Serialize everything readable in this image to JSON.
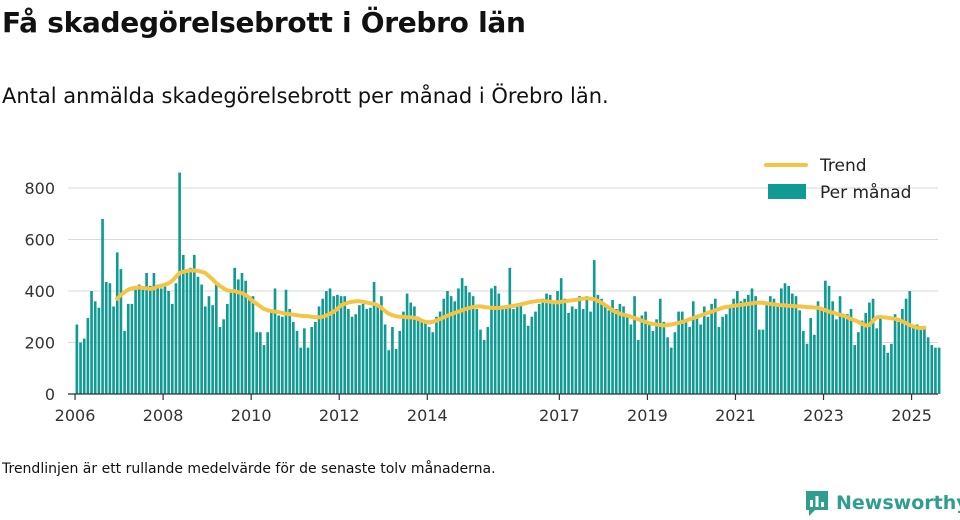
{
  "title": "Få skadegörelsebrott i Örebro län",
  "subtitle": "Antal anmälda skadegörelsebrott per månad i Örebro län.",
  "footnote": "Trendlinjen är ett rullande medelvärde för de senaste tolv månaderna.",
  "brand": "Newsworthy",
  "colors": {
    "bar": "#0f9a93",
    "trend": "#f5c444",
    "grid": "#d9d9d9",
    "axis": "#333333",
    "brand": "#2f9e8f"
  },
  "chart_data": {
    "type": "bar",
    "title": "",
    "xlabel": "",
    "ylabel": "",
    "ylim": [
      0,
      850
    ],
    "yticks": [
      0,
      200,
      400,
      600,
      800
    ],
    "xticks": [
      "2006",
      "2008",
      "2010",
      "2012",
      "2014",
      "2017",
      "2019",
      "2021",
      "2023",
      "2025"
    ],
    "legend": {
      "position": "top-right",
      "items": [
        "Trend",
        "Per månad"
      ]
    },
    "grid": true,
    "start": "2006-01",
    "series": [
      {
        "name": "Per månad",
        "type": "bar",
        "values": [
          270,
          200,
          215,
          295,
          400,
          360,
          335,
          680,
          435,
          430,
          340,
          550,
          485,
          245,
          350,
          350,
          405,
          425,
          405,
          470,
          420,
          470,
          420,
          410,
          430,
          400,
          350,
          430,
          860,
          540,
          480,
          490,
          540,
          455,
          425,
          340,
          380,
          345,
          435,
          260,
          290,
          350,
          400,
          490,
          445,
          470,
          440,
          380,
          380,
          240,
          240,
          190,
          240,
          320,
          410,
          305,
          300,
          405,
          330,
          280,
          245,
          180,
          255,
          180,
          260,
          280,
          340,
          370,
          400,
          410,
          380,
          385,
          380,
          380,
          330,
          300,
          310,
          345,
          350,
          330,
          335,
          435,
          350,
          380,
          270,
          170,
          260,
          175,
          245,
          320,
          390,
          355,
          340,
          300,
          285,
          275,
          260,
          240,
          300,
          320,
          370,
          400,
          380,
          360,
          410,
          450,
          420,
          395,
          380,
          330,
          250,
          210,
          260,
          410,
          420,
          390,
          340,
          345,
          490,
          330,
          340,
          345,
          310,
          265,
          300,
          320,
          350,
          370,
          390,
          385,
          355,
          400,
          450,
          370,
          315,
          340,
          330,
          380,
          330,
          380,
          320,
          520,
          385,
          370,
          340,
          325,
          365,
          330,
          350,
          340,
          300,
          270,
          380,
          210,
          305,
          320,
          270,
          245,
          290,
          370,
          280,
          220,
          180,
          240,
          320,
          320,
          290,
          260,
          360,
          300,
          270,
          340,
          300,
          350,
          370,
          260,
          300,
          310,
          340,
          370,
          400,
          360,
          370,
          385,
          410,
          380,
          250,
          250,
          350,
          380,
          370,
          340,
          410,
          430,
          420,
          390,
          380,
          325,
          245,
          195,
          295,
          230,
          360,
          330,
          440,
          420,
          360,
          290,
          380,
          305,
          310,
          330,
          190,
          240,
          285,
          315,
          355,
          370,
          255,
          300,
          190,
          160,
          195,
          310,
          280,
          330,
          370,
          400,
          265,
          270,
          250,
          260,
          220,
          190,
          180,
          180
        ]
      },
      {
        "name": "Trend",
        "type": "line",
        "values": [
          null,
          null,
          null,
          null,
          null,
          null,
          null,
          null,
          null,
          null,
          null,
          370,
          385,
          395,
          405,
          410,
          412,
          414,
          412,
          410,
          408,
          410,
          418,
          420,
          425,
          430,
          440,
          455,
          470,
          475,
          478,
          480,
          480,
          478,
          475,
          470,
          458,
          445,
          430,
          420,
          410,
          402,
          400,
          400,
          395,
          392,
          385,
          372,
          360,
          350,
          340,
          330,
          325,
          322,
          320,
          318,
          315,
          312,
          310,
          308,
          306,
          304,
          303,
          302,
          300,
          298,
          298,
          300,
          305,
          312,
          320,
          330,
          345,
          350,
          355,
          358,
          360,
          360,
          358,
          355,
          352,
          350,
          345,
          335,
          322,
          312,
          306,
          302,
          300,
          300,
          298,
          298,
          296,
          292,
          285,
          280,
          278,
          280,
          285,
          292,
          298,
          304,
          310,
          315,
          320,
          325,
          330,
          334,
          338,
          340,
          340,
          338,
          336,
          335,
          334,
          334,
          336,
          338,
          340,
          342,
          345,
          348,
          352,
          355,
          358,
          360,
          362,
          362,
          360,
          358,
          356,
          356,
          358,
          360,
          362,
          364,
          366,
          368,
          370,
          372,
          370,
          368,
          362,
          355,
          345,
          335,
          325,
          318,
          312,
          308,
          305,
          300,
          295,
          290,
          285,
          280,
          275,
          272,
          270,
          268,
          266,
          268,
          270,
          273,
          276,
          280,
          285,
          290,
          295,
          300,
          305,
          310,
          315,
          320,
          325,
          330,
          335,
          338,
          340,
          342,
          344,
          346,
          348,
          350,
          352,
          354,
          355,
          354,
          352,
          350,
          348,
          346,
          345,
          344,
          343,
          342,
          341,
          340,
          339,
          338,
          337,
          336,
          335,
          330,
          325,
          320,
          316,
          312,
          308,
          304,
          298,
          292,
          286,
          280,
          272,
          266,
          268,
          285,
          298,
          300,
          298,
          296,
          294,
          292,
          288,
          282,
          275,
          268,
          262,
          258,
          256,
          258
        ]
      }
    ]
  }
}
